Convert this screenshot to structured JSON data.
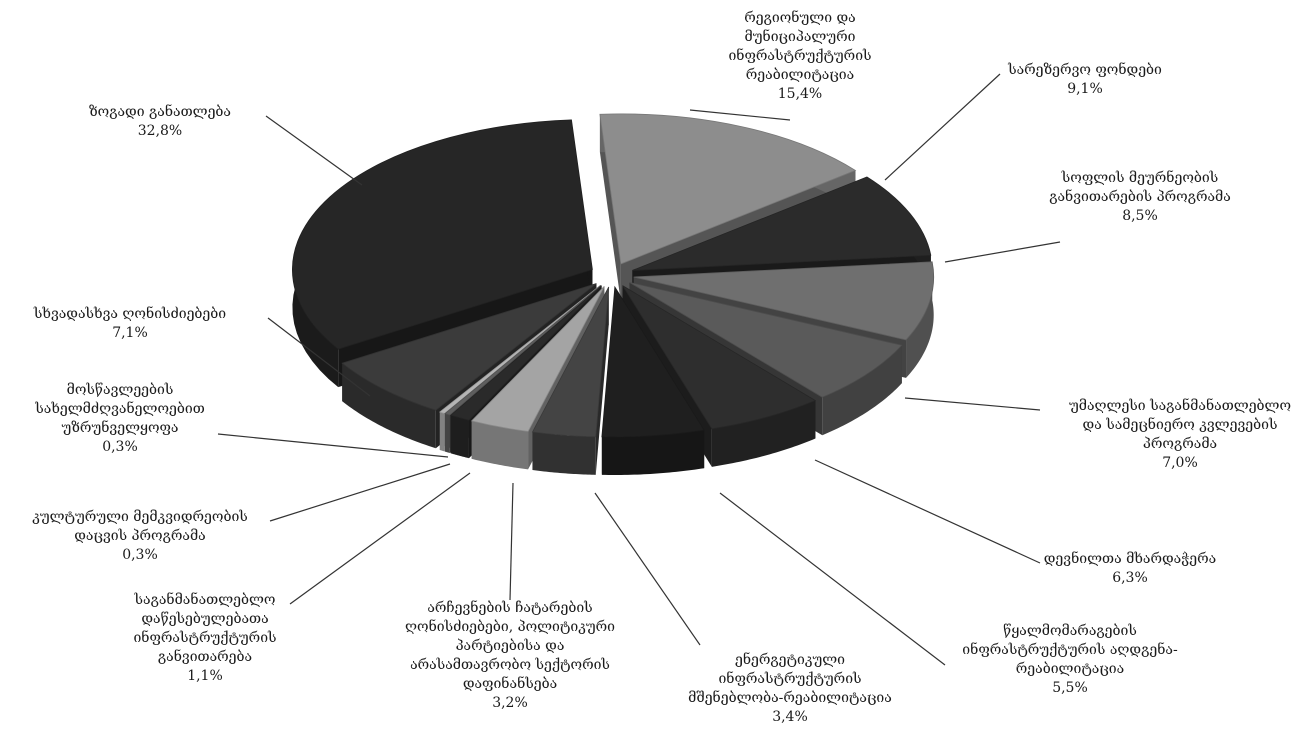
{
  "chart_data": {
    "type": "pie",
    "title": "",
    "slices": [
      {
        "label": [
          "რეგიონული და",
          "მუნიციპალური",
          "ინფრასტრუქტურის",
          "რეაბილიტაცია"
        ],
        "value": 15.4,
        "display": "15,4%",
        "color": "#8d8d8d"
      },
      {
        "label": [
          "სარეზერვო ფონდები"
        ],
        "value": 9.1,
        "display": "9,1%",
        "color": "#2b2b2b"
      },
      {
        "label": [
          "სოფლის მეურნეობის",
          "განვითარების პროგრამა"
        ],
        "value": 8.5,
        "display": "8,5%",
        "color": "#6f6f6f"
      },
      {
        "label": [
          "უმაღლესი საგანმანათლებლო",
          "და სამეცნიერო კვლევების",
          "პროგრამა"
        ],
        "value": 7.0,
        "display": "7,0%",
        "color": "#5a5a5a"
      },
      {
        "label": [
          "დევნილთა მხარდაჭერა"
        ],
        "value": 6.3,
        "display": "6,3%",
        "color": "#2e2e2e"
      },
      {
        "label": [
          "წყალმომარაგების",
          "ინფრასტრუქტურის აღდგენა-",
          "რეაბილიტაცია"
        ],
        "value": 5.5,
        "display": "5,5%",
        "color": "#1f1f1f"
      },
      {
        "label": [
          "ენერგეტიკული",
          "ინფრასტრუქტურის",
          "მშენებლობა-რეაბილიტაცია"
        ],
        "value": 3.4,
        "display": "3,4%",
        "color": "#444444"
      },
      {
        "label": [
          "არჩევნების ჩატარების",
          "ღონისძიებები, პოლიტიკური",
          "პარტიებისა და",
          "არასამთავრობო სექტორის",
          "დაფინანსება"
        ],
        "value": 3.2,
        "display": "3,2%",
        "color": "#a4a4a4"
      },
      {
        "label": [
          "საგანმანათლებლო",
          "დაწესებულებათა",
          "ინფრასტრუქტურის",
          "განვითარება"
        ],
        "value": 1.1,
        "display": "1,1%",
        "color": "#2a2a2a"
      },
      {
        "label": [
          "კულტურული მემკვიდრეობის",
          "დაცვის პროგრამა"
        ],
        "value": 0.3,
        "display": "0,3%",
        "color": "#5e5e5e"
      },
      {
        "label": [
          "მოსწავლეების",
          "სახელმძღვანელოებით",
          "უზრუნველყოფა"
        ],
        "value": 0.3,
        "display": "0,3%",
        "color": "#b5b5b5"
      },
      {
        "label": [
          "სხვადასხვა ღონისძიებები"
        ],
        "value": 7.1,
        "display": "7,1%",
        "color": "#3b3b3b"
      },
      {
        "label": [
          "ზოგადი განათლება"
        ],
        "value": 32.8,
        "display": "32,8%",
        "color": "#262626"
      }
    ],
    "legend": "none",
    "exploded": true,
    "style": "3d"
  }
}
